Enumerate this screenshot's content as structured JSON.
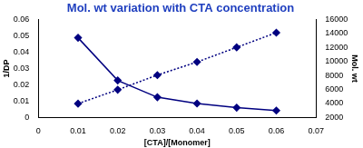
{
  "chart_data": {
    "type": "line",
    "title": "Mol. wt variation with CTA concentration",
    "x_label": "[CTA]/[Monomer]",
    "y_label": "1/DP",
    "y2_label": "Mol. wt",
    "x": [
      0.01,
      0.02,
      0.03,
      0.04,
      0.05,
      0.06
    ],
    "series": [
      {
        "color": "#000080",
        "values": [
          0.0085,
          0.017,
          0.026,
          0.034,
          0.043,
          0.052
        ],
        "line_style": "dotted",
        "marker": "diamond"
      },
      {
        "color": "#000080",
        "values": [
          13400,
          7300,
          4900,
          4000,
          3400,
          3000
        ],
        "line_style": "solid",
        "marker": "diamond",
        "axis": "y2"
      }
    ],
    "xlim": [
      0,
      0.07
    ],
    "xticks": [
      0,
      0.01,
      0.02,
      0.03,
      0.04,
      0.05,
      0.06,
      0.07
    ],
    "ylim": [
      0,
      0.06
    ],
    "yticks": [
      0,
      0.01,
      0.02,
      0.03,
      0.04,
      0.05,
      0.06
    ],
    "y2lim": [
      2000,
      16000
    ],
    "y2ticks": [
      2000,
      4000,
      6000,
      8000,
      10000,
      12000,
      14000,
      16000
    ],
    "grid": false
  }
}
